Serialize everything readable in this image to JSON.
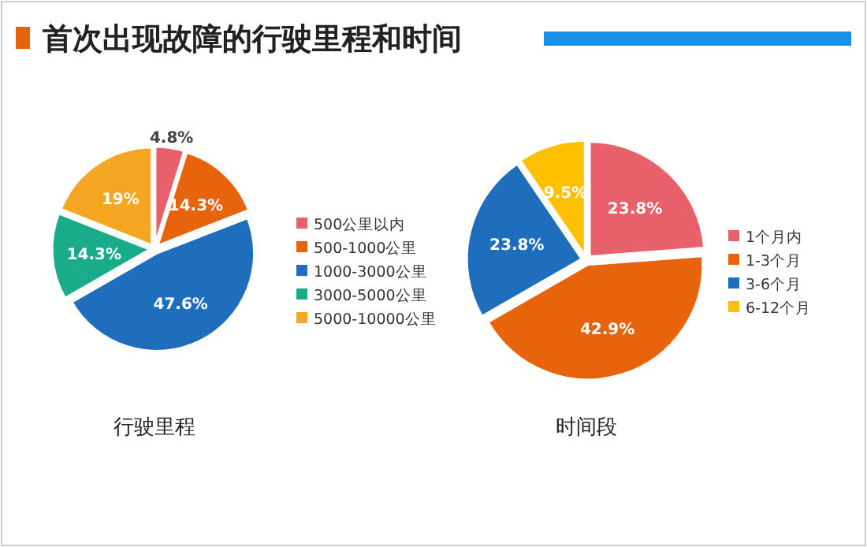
{
  "chart_data": [
    {
      "type": "pie",
      "title": "首次出现故障的行驶里程和时间",
      "xlabel": "行驶里程",
      "legend": "right",
      "categories": [
        "500公里以内",
        "500-1000公里",
        "1000-3000公里",
        "3000-5000公里",
        "5000-10000公里"
      ],
      "values": [
        4.8,
        14.3,
        47.6,
        14.3,
        19
      ],
      "value_labels": [
        "4.8%",
        "14.3%",
        "47.6%",
        "14.3%",
        "19%"
      ],
      "colors": [
        "#e8606a",
        "#e8640c",
        "#1f6ebd",
        "#1aab8a",
        "#f5a623"
      ]
    },
    {
      "type": "pie",
      "xlabel": "时间段",
      "legend": "right",
      "categories": [
        "1个月内",
        "1-3个月",
        "3-6个月",
        "6-12个月"
      ],
      "values": [
        23.8,
        42.9,
        23.8,
        9.5
      ],
      "value_labels": [
        "23.8%",
        "42.9%",
        "23.8%",
        "9.5%"
      ],
      "colors": [
        "#e8606a",
        "#e8640c",
        "#1f6ebd",
        "#ffc000"
      ]
    }
  ]
}
